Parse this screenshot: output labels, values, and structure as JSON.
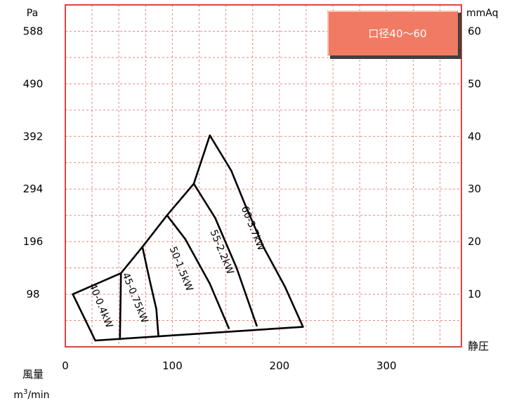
{
  "chart_data": {
    "type": "area",
    "badge": "口径40〜60",
    "x_axis": {
      "label": "風量",
      "unit_prefix": "m",
      "unit_sup": "3",
      "unit_suffix": "/min",
      "range": [
        0,
        370
      ],
      "ticks": [
        0,
        100,
        200,
        300
      ]
    },
    "y_left": {
      "label": "Pa",
      "ticks": [
        98,
        196,
        294,
        392,
        490,
        588
      ]
    },
    "y_right": {
      "label": "mmAq",
      "ticks": [
        10,
        20,
        30,
        40,
        50,
        60
      ],
      "range": [
        0,
        65
      ],
      "bottom_label": "静圧"
    },
    "grid": true,
    "outline": [
      [
        7,
        10
      ],
      [
        52,
        14
      ],
      [
        72,
        19
      ],
      [
        95,
        25
      ],
      [
        120,
        31
      ],
      [
        135,
        40.2
      ],
      [
        155,
        33.5
      ],
      [
        168,
        27
      ],
      [
        185,
        19
      ],
      [
        205,
        11.5
      ],
      [
        222,
        3.8
      ],
      [
        87,
        2
      ],
      [
        28,
        1.2
      ]
    ],
    "zones": [
      {
        "name": "40-0.4kW",
        "boundary": [
          [
            52,
            14
          ],
          [
            51,
            1.3
          ]
        ],
        "label_x": 33,
        "label_y": 7.8
      },
      {
        "name": "45-0.75kW",
        "boundary": [
          [
            72,
            19
          ],
          [
            79,
            12.5
          ],
          [
            85,
            7.2
          ],
          [
            87,
            2
          ]
        ],
        "label_x": 65,
        "label_y": 9.3
      },
      {
        "name": "50-1.5kW",
        "boundary": [
          [
            95,
            25
          ],
          [
            112,
            20.5
          ],
          [
            135,
            12
          ],
          [
            153,
            3.4
          ]
        ],
        "label_x": 108,
        "label_y": 14.8
      },
      {
        "name": "55-2.2kW",
        "boundary": [
          [
            120,
            31
          ],
          [
            140,
            24.5
          ],
          [
            160,
            15
          ],
          [
            179,
            3.9
          ]
        ],
        "label_x": 146,
        "label_y": 18
      },
      {
        "name": "60-3.7kW",
        "boundary": [],
        "label_x": 175,
        "label_y": 22.5
      }
    ],
    "colors": {
      "frame": "#d9463d",
      "grid": "#e48a80",
      "badge": "#f17a62",
      "line": "#000000"
    }
  }
}
